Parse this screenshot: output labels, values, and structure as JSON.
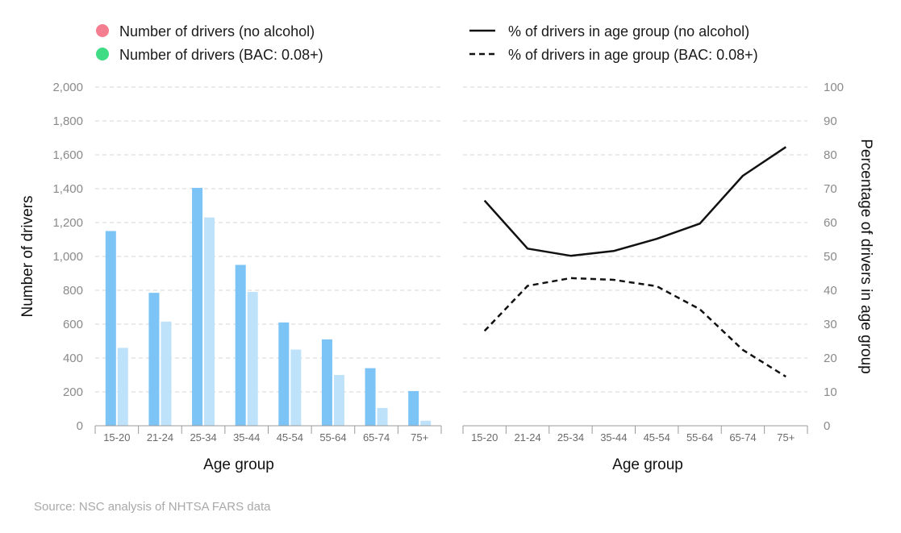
{
  "legend": {
    "left": [
      {
        "label": "Number of drivers (no alcohol)",
        "color": "#f47e8f"
      },
      {
        "label": "Number of drivers (BAC: 0.08+)",
        "color": "#3fdc85"
      }
    ],
    "right": [
      {
        "label": "% of drivers in age group (no alcohol)",
        "style": "solid"
      },
      {
        "label": "% of drivers in age group (BAC: 0.08+)",
        "style": "dashed"
      }
    ]
  },
  "source": "Source: NSC analysis of NHTSA FARS data",
  "colors": {
    "bar_dark": "#7cc3f6",
    "bar_light": "#bfe2fb",
    "line": "#111111",
    "grid": "#d4d4d4"
  },
  "chart_data": [
    {
      "type": "bar",
      "xlabel": "Age group",
      "ylabel": "Number of drivers",
      "categories": [
        "15-20",
        "21-24",
        "25-34",
        "35-44",
        "45-54",
        "55-64",
        "65-74",
        "75+"
      ],
      "ylim": [
        0,
        2000
      ],
      "yticks": [
        "0",
        "200",
        "400",
        "600",
        "800",
        "1,000",
        "1,200",
        "1,400",
        "1,600",
        "1,800",
        "2,000"
      ],
      "grid": true,
      "series": [
        {
          "name": "Number of drivers (no alcohol)",
          "values": [
            1150,
            785,
            1405,
            950,
            610,
            510,
            340,
            205
          ]
        },
        {
          "name": "Number of drivers (BAC: 0.08+)",
          "values": [
            460,
            615,
            1230,
            790,
            450,
            300,
            105,
            30
          ]
        }
      ]
    },
    {
      "type": "line",
      "xlabel": "Age group",
      "ylabel": "Percentage of drivers in age group",
      "categories": [
        "15-20",
        "21-24",
        "25-34",
        "35-44",
        "45-54",
        "55-64",
        "65-74",
        "75+"
      ],
      "ylim": [
        0,
        100
      ],
      "yticks": [
        "0",
        "10",
        "20",
        "30",
        "40",
        "50",
        "60",
        "70",
        "80",
        "90",
        "100"
      ],
      "grid": true,
      "series": [
        {
          "name": "% of drivers in age group (no alcohol)",
          "style": "solid",
          "values": [
            66.5,
            52.3,
            50.2,
            51.6,
            55.2,
            59.7,
            73.8,
            82.3
          ]
        },
        {
          "name": "% of drivers in age group (BAC: 0.08+)",
          "style": "dashed",
          "values": [
            28.0,
            41.3,
            43.6,
            43.1,
            41.2,
            34.4,
            22.4,
            14.5
          ]
        }
      ]
    }
  ]
}
